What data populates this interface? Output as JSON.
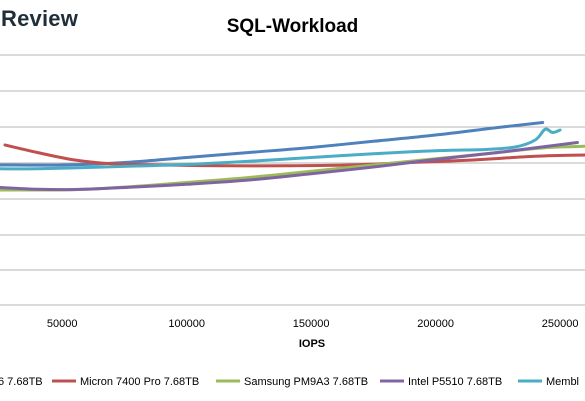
{
  "brand": "Review",
  "chart_data": {
    "type": "line",
    "title": "SQL-Workload",
    "xlabel": "IOPS",
    "ylabel": "",
    "xlim": [
      25000,
      260000
    ],
    "ylim": [
      0,
      1
    ],
    "x_ticks": [
      50000,
      100000,
      150000,
      200000,
      250000
    ],
    "x_tick_labels": [
      "50000",
      "100000",
      "150000",
      "200000",
      "250000"
    ],
    "grid": "horizontal",
    "legend_position": "bottom",
    "series": [
      {
        "name": "6 7.68TB",
        "color": "#4f81bd",
        "points": [
          [
            25000,
            0.56
          ],
          [
            50000,
            0.56
          ],
          [
            75000,
            0.57
          ],
          [
            100000,
            0.59
          ],
          [
            125000,
            0.61
          ],
          [
            150000,
            0.63
          ],
          [
            175000,
            0.655
          ],
          [
            200000,
            0.68
          ],
          [
            225000,
            0.71
          ],
          [
            243000,
            0.73
          ]
        ]
      },
      {
        "name": "Micron 7400 Pro 7.68TB",
        "color": "#c0504d",
        "points": [
          [
            27000,
            0.64
          ],
          [
            40000,
            0.61
          ],
          [
            55000,
            0.58
          ],
          [
            70000,
            0.565
          ],
          [
            90000,
            0.56
          ],
          [
            115000,
            0.557
          ],
          [
            140000,
            0.557
          ],
          [
            165000,
            0.56
          ],
          [
            190000,
            0.57
          ],
          [
            215000,
            0.58
          ],
          [
            240000,
            0.595
          ],
          [
            260000,
            0.6
          ]
        ]
      },
      {
        "name": "Samsung PM9A3 7.68TB",
        "color": "#9bbb59",
        "points": [
          [
            25000,
            0.46
          ],
          [
            45000,
            0.46
          ],
          [
            60000,
            0.463
          ],
          [
            80000,
            0.475
          ],
          [
            100000,
            0.49
          ],
          [
            125000,
            0.51
          ],
          [
            150000,
            0.535
          ],
          [
            175000,
            0.56
          ],
          [
            200000,
            0.585
          ],
          [
            225000,
            0.61
          ],
          [
            245000,
            0.63
          ],
          [
            260000,
            0.635
          ]
        ]
      },
      {
        "name": "Intel P5510 7.68TB",
        "color": "#8064a2",
        "points": [
          [
            25000,
            0.47
          ],
          [
            40000,
            0.463
          ],
          [
            55000,
            0.462
          ],
          [
            75000,
            0.47
          ],
          [
            100000,
            0.483
          ],
          [
            125000,
            0.5
          ],
          [
            150000,
            0.525
          ],
          [
            175000,
            0.552
          ],
          [
            200000,
            0.582
          ],
          [
            225000,
            0.61
          ],
          [
            245000,
            0.635
          ],
          [
            257000,
            0.65
          ]
        ]
      },
      {
        "name": "Membl",
        "color": "#4bacc6",
        "points": [
          [
            25000,
            0.545
          ],
          [
            40000,
            0.545
          ],
          [
            60000,
            0.55
          ],
          [
            80000,
            0.556
          ],
          [
            100000,
            0.562
          ],
          [
            125000,
            0.575
          ],
          [
            150000,
            0.59
          ],
          [
            175000,
            0.605
          ],
          [
            200000,
            0.617
          ],
          [
            220000,
            0.622
          ],
          [
            232000,
            0.632
          ],
          [
            240000,
            0.66
          ],
          [
            244000,
            0.703
          ],
          [
            247000,
            0.69
          ],
          [
            250000,
            0.7
          ]
        ]
      }
    ]
  }
}
